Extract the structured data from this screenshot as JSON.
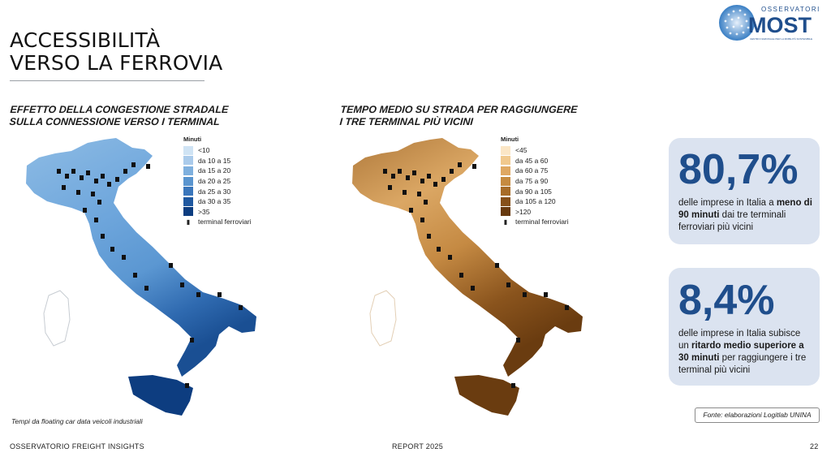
{
  "page": {
    "title_line1": "ACCESSIBILITÀ",
    "title_line2": "VERSO LA FERROVIA",
    "logo": {
      "top": "OSSERVATORI",
      "main": "MOST",
      "caption": "CENTRO NAZIONALE PER LA MOBILITÀ SOSTENIBILE"
    }
  },
  "left_panel": {
    "subtitle_line1": "EFFETTO DELLA CONGESTIONE STRADALE",
    "subtitle_line2": "SULLA CONNESSIONE VERSO I TERMINAL",
    "legend_title": "Minuti",
    "legend": [
      {
        "label": "<10",
        "color": "#cfe3f4"
      },
      {
        "label": "da 10 a 15",
        "color": "#aacbeb"
      },
      {
        "label": "da 15 a 20",
        "color": "#7fb0de"
      },
      {
        "label": "da 20 a 25",
        "color": "#5a95cf"
      },
      {
        "label": "da 25 a 30",
        "color": "#3a76bb"
      },
      {
        "label": "da 30 a 35",
        "color": "#1f58a0"
      },
      {
        "label": ">35",
        "color": "#0d3d80"
      }
    ],
    "terminal_label": "terminal ferroviari",
    "note": "Tempi da floating car data veicoli industriali"
  },
  "right_panel": {
    "subtitle_line1": "TEMPO MEDIO SU STRADA PER RAGGIUNGERE",
    "subtitle_line2": "I TRE TERMINAL PIÙ VICINI",
    "legend_title": "Minuti",
    "legend": [
      {
        "label": "<45",
        "color": "#fbe6c6"
      },
      {
        "label": "da 45 a 60",
        "color": "#f1c98e"
      },
      {
        "label": "da 60 a 75",
        "color": "#dfa862"
      },
      {
        "label": "da 75 a 90",
        "color": "#c68b40"
      },
      {
        "label": "da 90 a 105",
        "color": "#a76c28"
      },
      {
        "label": "da 105 a 120",
        "color": "#86501a"
      },
      {
        "label": ">120",
        "color": "#683a0f"
      }
    ],
    "terminal_label": "terminal ferroviari"
  },
  "stats": [
    {
      "value": "80,7%",
      "pre": "delle imprese in Italia a ",
      "bold": "meno di 90 minuti",
      "post": " dai tre terminali ferroviari più vicini"
    },
    {
      "value": "8,4%",
      "pre": "delle imprese in Italia subisce un ",
      "bold": "ritardo medio superiore a 30 minuti",
      "post": " per raggiungere i tre terminal più vicini"
    }
  ],
  "source": "Fonte: elaborazioni Logitlab UNINA",
  "footer": {
    "left": "OSSERVATORIO FREIGHT INSIGHTS",
    "center": "REPORT 2025",
    "page_number": "22"
  },
  "colors": {
    "accent": "#1f4e8c",
    "card_bg": "#dbe3f0"
  }
}
